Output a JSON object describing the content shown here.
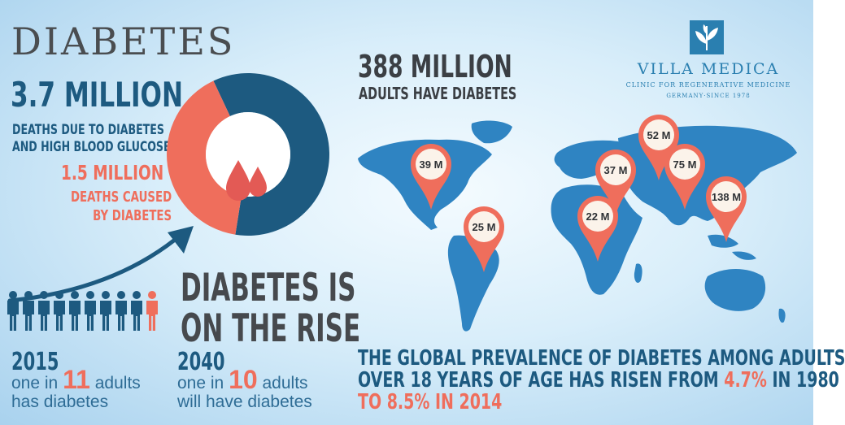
{
  "title": "DIABETES",
  "deaths": {
    "total_value": "3.7 MILLION",
    "total_desc_line1": "DEATHS DUE TO DIABETES",
    "total_desc_line2": "AND HIGH BLOOD GLUCOSE",
    "diabetes_value": "1.5 MILLION",
    "diabetes_desc_line1": "DEATHS CAUSED",
    "diabetes_desc_line2": "BY DIABETES",
    "donut_share_diabetes": 0.405
  },
  "rise": {
    "line1": "DIABETES IS",
    "line2": "ON THE RISE"
  },
  "stat_2015": {
    "year": "2015",
    "pre": "one in",
    "number": "11",
    "post": "adults",
    "line2": "has diabetes"
  },
  "stat_2040": {
    "year": "2040",
    "pre": "one in",
    "number": "10",
    "post": "adults",
    "line2": "will have diabetes"
  },
  "people": {
    "count": 10,
    "highlighted_index": 9
  },
  "headline": {
    "value": "388 MILLION",
    "desc": "ADULTS HAVE DIABETES"
  },
  "brand": {
    "name": "VILLA MEDICA",
    "tagline": "CLINIC FOR REGENERATIVE MEDICINE",
    "since": "GERMANY·SINCE 1978"
  },
  "map_pins": [
    {
      "label": "39 M"
    },
    {
      "label": "25 M"
    },
    {
      "label": "52 M"
    },
    {
      "label": "37 M"
    },
    {
      "label": "75 M"
    },
    {
      "label": "22 M"
    },
    {
      "label": "138 M"
    }
  ],
  "prevalence": {
    "line1": "THE GLOBAL PREVALENCE OF DIABETES AMONG ADULTS",
    "line2_pre": "OVER 18 YEARS OF AGE HAS RISEN FROM",
    "value_1980": "4.7%",
    "line2_post": "IN 1980",
    "line3_pre": "TO",
    "value_2014": "8.5%",
    "line3_post": "IN 2014"
  },
  "colors": {
    "navy": "#1d5a80",
    "coral": "#ef6e5c",
    "map_blue": "#2f84c2",
    "dark_text": "#46494d"
  }
}
